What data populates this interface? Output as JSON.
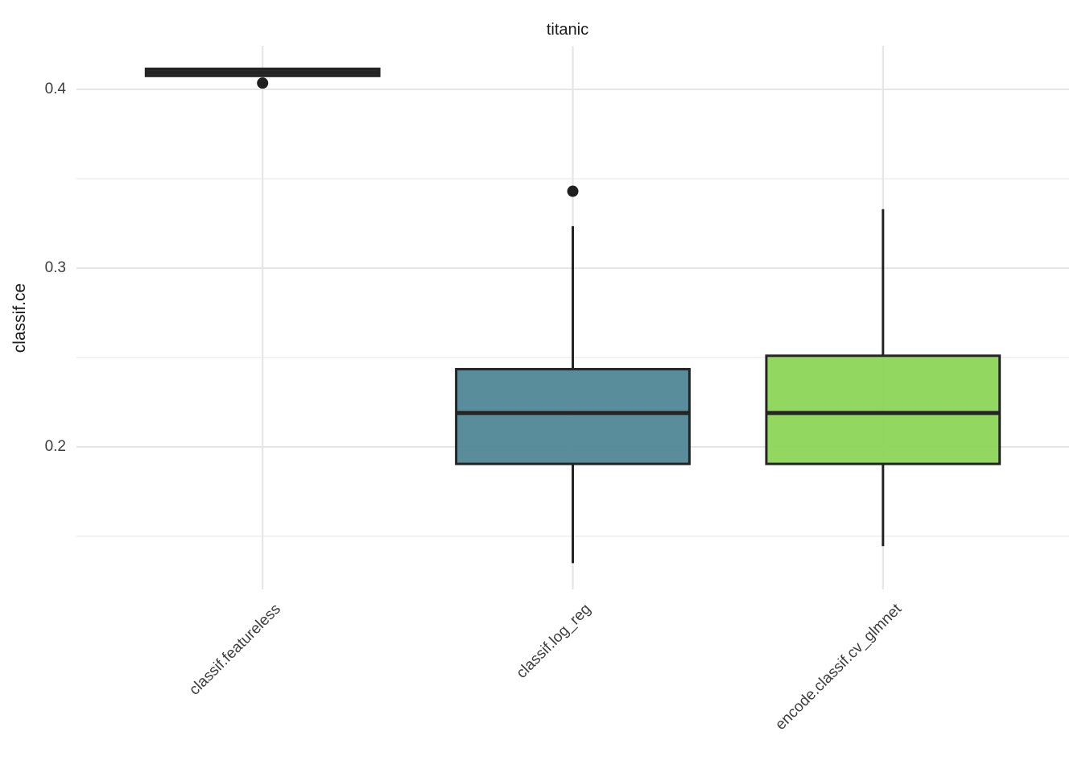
{
  "chart_data": {
    "type": "boxplot",
    "title": "titanic",
    "xlabel": "",
    "ylabel": "classif.ce",
    "grid": true,
    "legend": "none",
    "ylim": [
      0.1203,
      0.4243
    ],
    "y_ticks": [
      {
        "value": 0.2,
        "label": "0.2"
      },
      {
        "value": 0.3,
        "label": "0.3"
      },
      {
        "value": 0.4,
        "label": "0.4"
      }
    ],
    "y_minor_ticks": [
      0.15,
      0.25,
      0.35
    ],
    "categories": [
      "classif.featureless",
      "classif.log_reg",
      "encode.classif.cv_glmnet"
    ],
    "series": [
      {
        "name": "classif.featureless",
        "fill": "#252525",
        "collapsed": true,
        "whisker_low": 0.4075,
        "q1": 0.4075,
        "median": 0.4095,
        "q3": 0.4115,
        "whisker_high": 0.4115,
        "outliers": [
          0.4035
        ]
      },
      {
        "name": "classif.log_reg",
        "fill": "#4D8494",
        "collapsed": false,
        "whisker_low": 0.135,
        "q1": 0.1905,
        "median": 0.219,
        "q3": 0.2435,
        "whisker_high": 0.3235,
        "outliers": [
          0.343
        ]
      },
      {
        "name": "encode.classif.cv_glmnet",
        "fill": "#8AD454",
        "collapsed": false,
        "whisker_low": 0.1445,
        "q1": 0.1905,
        "median": 0.219,
        "q3": 0.251,
        "whisker_high": 0.333,
        "outliers": []
      }
    ],
    "colors": {
      "box_stroke": "#242424",
      "outlier": "#1f1f1f",
      "gridline_major": "#e6e6e6",
      "gridline_minor": "#f1f1f1",
      "title_text": "#1c1c1c",
      "tick_text": "#3e3e3e",
      "background": "#ffffff"
    }
  }
}
